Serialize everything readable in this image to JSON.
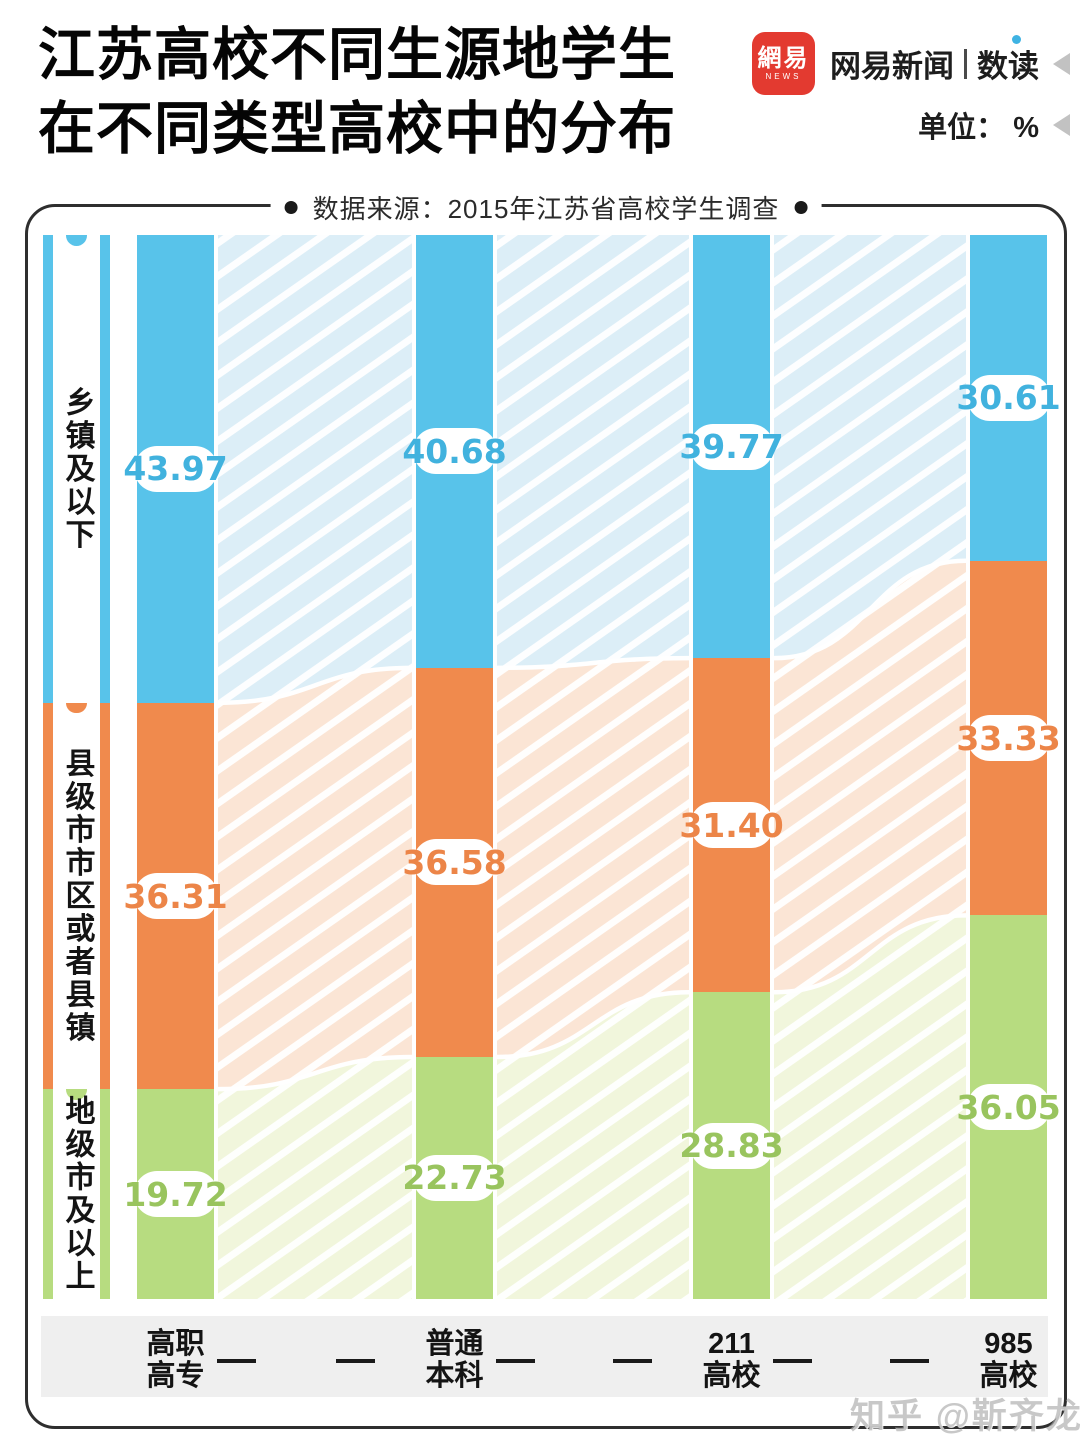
{
  "page": {
    "title_lines": [
      "江苏高校不同生源地学生",
      "在不同类型高校中的分布"
    ],
    "brand": {
      "logo_main": "網易",
      "logo_sub": "NEWS",
      "name": "网易新闻",
      "section": "数读"
    },
    "unit_label": "单位： %",
    "source_note": "数据来源：2015年江苏省高校学生调查",
    "watermark": "知乎 @靳齐龙"
  },
  "chart_data": {
    "type": "bar",
    "variant": "stacked-100-percent",
    "orientation": "vertical",
    "unit": "%",
    "title": "江苏高校不同生源地学生在不同类型高校中的分布",
    "source": "数据来源：2015年江苏省高校学生调查",
    "categories": [
      "高职高专",
      "普通本科",
      "211高校",
      "985高校"
    ],
    "category_label_lines": [
      [
        "高职",
        "高专"
      ],
      [
        "普通",
        "本科"
      ],
      [
        "211",
        "高校"
      ],
      [
        "985",
        "高校"
      ]
    ],
    "series": [
      {
        "name": "乡镇及以下",
        "color": "#58C3EA",
        "hatch_color": "#DCEEF7",
        "label_color": "#41B2DE",
        "values": [
          43.97,
          40.68,
          39.77,
          30.61
        ]
      },
      {
        "name": "县级市市区或者县镇",
        "color": "#F08A4D",
        "hatch_color": "#FBE5D5",
        "label_color": "#EC8548",
        "values": [
          36.31,
          36.58,
          31.4,
          33.33
        ]
      },
      {
        "name": "地级市及以上",
        "color": "#B7DC80",
        "hatch_color": "#F1F6DC",
        "label_color": "#99C45E",
        "values": [
          19.72,
          22.73,
          28.83,
          36.05
        ]
      }
    ],
    "ylim": [
      0,
      100
    ],
    "value_decimals": 2,
    "legend_position": "left",
    "grid": false
  }
}
